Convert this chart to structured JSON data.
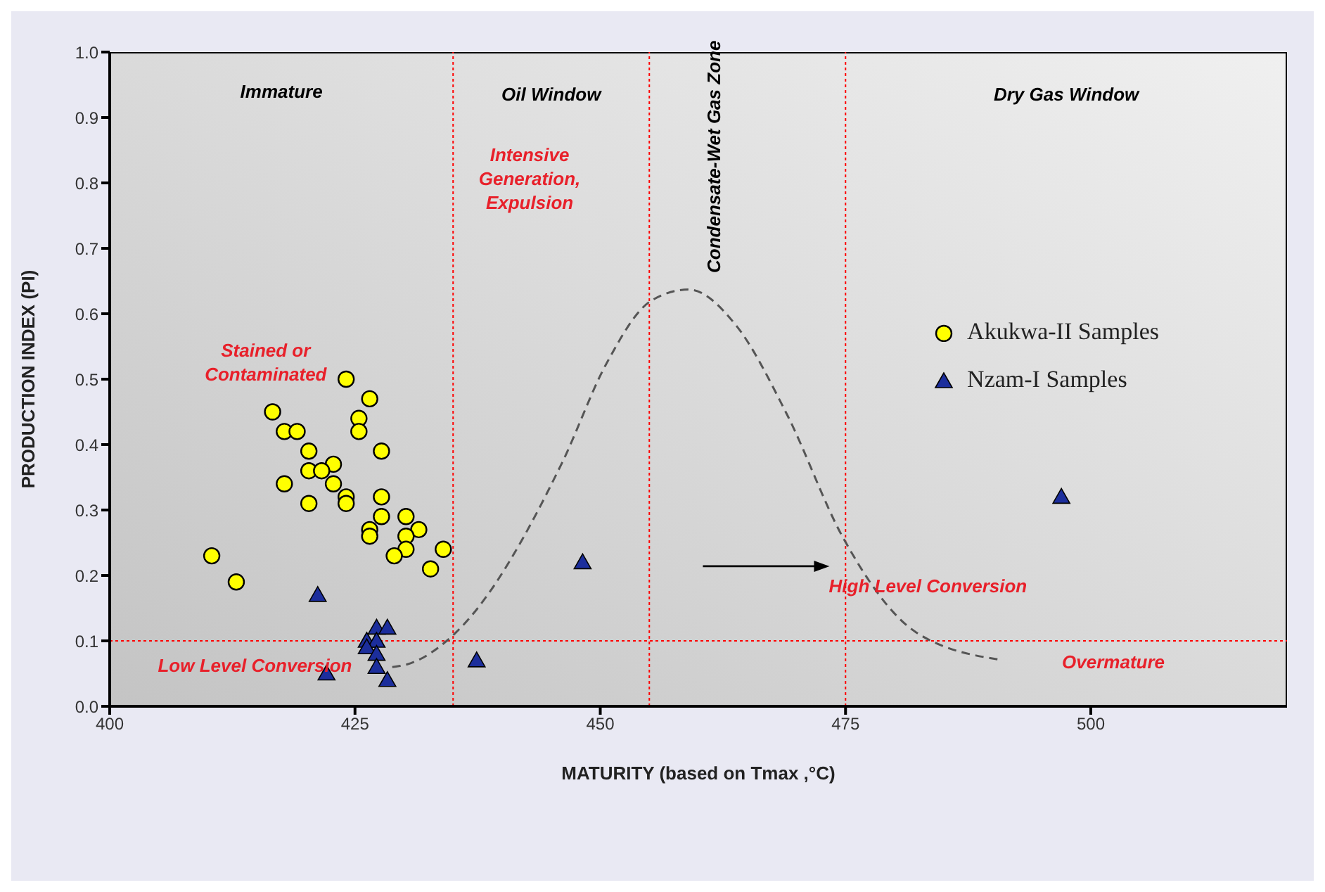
{
  "chart_data": {
    "type": "scatter",
    "xlabel": "MATURITY (based on Tmax ,°C)",
    "ylabel": "PRODUCTION INDEX (PI)",
    "xlim": [
      400,
      520
    ],
    "xticks": [
      400,
      425,
      450,
      475,
      500
    ],
    "ylim": [
      0,
      1
    ],
    "yticks": [
      {
        "value": 0,
        "label": "0.0"
      },
      0.1,
      0.2,
      0.3,
      0.4,
      0.5,
      0.6,
      0.7,
      0.8,
      0.9,
      {
        "value": 1,
        "label": "1.0"
      }
    ],
    "legend": "top right",
    "series": [
      {
        "name": "Akukwa-II Samples",
        "marker": "circle",
        "color": "#ffff00",
        "x": [
          424.1,
          426.5,
          416.6,
          425.4,
          417.8,
          419.1,
          425.4,
          420.3,
          427.7,
          422.8,
          420.3,
          421.6,
          417.8,
          422.8,
          424.1,
          427.7,
          420.3,
          424.1,
          427.7,
          430.2,
          426.5,
          431.5,
          426.5,
          430.2,
          430.2,
          434.0,
          410.4,
          429.0,
          432.7,
          412.9
        ],
        "values": [
          0.5,
          0.47,
          0.45,
          0.44,
          0.42,
          0.42,
          0.42,
          0.39,
          0.39,
          0.37,
          0.36,
          0.36,
          0.34,
          0.34,
          0.32,
          0.32,
          0.31,
          0.31,
          0.29,
          0.29,
          0.27,
          0.27,
          0.26,
          0.26,
          0.24,
          0.24,
          0.23,
          0.23,
          0.21,
          0.19
        ]
      },
      {
        "name": "Nzam-I Samples",
        "marker": "triangle",
        "color": "#1c2e9c",
        "x": [
          421.2,
          427.2,
          428.3,
          426.2,
          427.2,
          426.2,
          427.2,
          427.2,
          422.1,
          428.3,
          437.4,
          448.2,
          497.0
        ],
        "values": [
          0.17,
          0.12,
          0.12,
          0.1,
          0.1,
          0.09,
          0.08,
          0.06,
          0.05,
          0.04,
          0.07,
          0.22,
          0.32
        ]
      },
      {
        "type": "line",
        "marker": "none",
        "line_style": "dashed",
        "color": "#555555",
        "x": [
          428.8,
          430.3,
          435.3,
          446.1,
          450.6,
          455.2,
          459.0,
          463.8,
          469.0,
          474.7,
          482.2,
          490.8
        ],
        "values": [
          0.06,
          0.064,
          0.113,
          0.372,
          0.523,
          0.62,
          0.637,
          0.583,
          0.447,
          0.259,
          0.113,
          0.071
        ]
      }
    ],
    "ref_lines": [
      {
        "axis": "x",
        "value": 435,
        "color": "#ff0000",
        "line_style": "dotted"
      },
      {
        "axis": "x",
        "value": 455,
        "color": "#ff0000",
        "line_style": "dotted"
      },
      {
        "axis": "x",
        "value": 475,
        "color": "#ff0000",
        "line_style": "dotted"
      },
      {
        "axis": "y",
        "value": 0.1,
        "color": "#ff0000",
        "line_style": "dotted"
      }
    ],
    "annotations": [
      "Immature",
      "Oil Window",
      "Condensate-Wet Gas Zone",
      "Dry Gas Window",
      "Stained or\nContaminated",
      "Intensive\nGeneration,\nExpulsion",
      "Low Level Conversion",
      "High Level Conversion",
      "Overmature"
    ]
  }
}
